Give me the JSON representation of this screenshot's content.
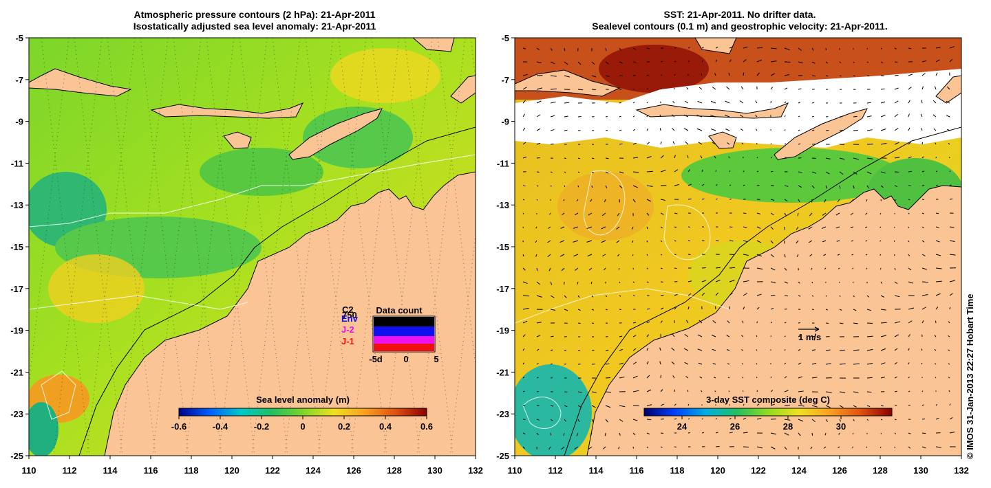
{
  "left_panel": {
    "title_line1": "Atmospheric pressure contours (2 hPa): 21-Apr-2011",
    "title_line2": "Isostatically adjusted sea level anomaly: 21-Apr-2011",
    "x_ticks": [
      "110",
      "112",
      "114",
      "116",
      "118",
      "120",
      "122",
      "124",
      "126",
      "128",
      "130",
      "132"
    ],
    "y_ticks": [
      "-5",
      "-7",
      "-9",
      "-11",
      "-13",
      "-15",
      "-17",
      "-19",
      "-21",
      "-23",
      "-25"
    ],
    "colorbar": {
      "title": "Sea level anomaly (m)",
      "ticks": [
        "-0.6",
        "-0.4",
        "-0.2",
        "0",
        "0.2",
        "0.4",
        "0.6"
      ]
    },
    "data_count": {
      "title": "Data count",
      "scale_labels": [
        "C2",
        "750"
      ],
      "missions": [
        {
          "label": "Env",
          "color": "#1010ee"
        },
        {
          "label": "J-2",
          "color": "#ee10ee"
        },
        {
          "label": "J-1",
          "color": "#ee1010"
        }
      ],
      "x_ticks": [
        "-5d",
        "0",
        "5"
      ]
    }
  },
  "right_panel": {
    "title_line1": "SST: 21-Apr-2011. No drifter data.",
    "title_line2": "Sealevel contours (0.1 m) and geostrophic velocity: 21-Apr-2011.",
    "x_ticks": [
      "110",
      "112",
      "114",
      "116",
      "118",
      "120",
      "122",
      "124",
      "126",
      "128",
      "130",
      "132"
    ],
    "y_ticks": [
      "-5",
      "-7",
      "-9",
      "-11",
      "-13",
      "-15",
      "-17",
      "-19",
      "-21",
      "-23",
      "-25"
    ],
    "colorbar": {
      "title": "3-day SST composite (deg C)",
      "ticks": [
        "24",
        "26",
        "28",
        "30"
      ]
    },
    "velocity_scale_label": "1 m/s"
  },
  "copyright": "© IMOS 31-Jan-2013 22:27 Hobart Time",
  "colors": {
    "land": "#fbc495",
    "sla_ramp": [
      "#00008f",
      "#0060ff",
      "#00c8c8",
      "#20c060",
      "#7cd62a",
      "#f0e020",
      "#f8a020",
      "#e05010",
      "#8a0000"
    ],
    "sst_ramp": [
      "#00006f",
      "#0040ff",
      "#00b0e0",
      "#20c060",
      "#90dc20",
      "#f0e020",
      "#f8a020",
      "#e05010",
      "#8a0000"
    ]
  }
}
